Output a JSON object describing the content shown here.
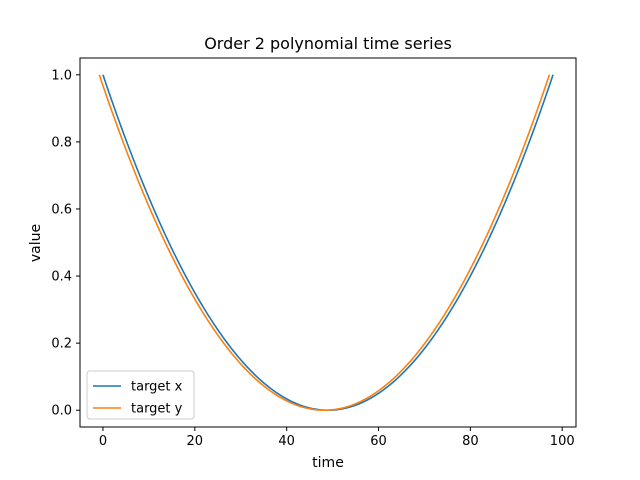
{
  "chart_data": {
    "type": "line",
    "title": "Order 2 polynomial time series",
    "xlabel": "time",
    "ylabel": "value",
    "xlim": [
      -5,
      103
    ],
    "ylim": [
      -0.05,
      1.05
    ],
    "xticks": [
      0,
      20,
      40,
      60,
      80,
      100
    ],
    "yticks": [
      0.0,
      0.2,
      0.4,
      0.6,
      0.8,
      1.0
    ],
    "xtick_labels": [
      "0",
      "20",
      "40",
      "60",
      "80",
      "100"
    ],
    "ytick_labels": [
      "0.0",
      "0.2",
      "0.4",
      "0.6",
      "0.8",
      "1.0"
    ],
    "grid": false,
    "legend": "lower-left",
    "series": [
      {
        "name": "target x",
        "color": "#1f77b4",
        "formula": "((t - 49) / 49)^2, t = 0..98",
        "x": [
          0,
          7,
          14,
          21,
          28,
          35,
          42,
          49,
          56,
          63,
          70,
          77,
          84,
          91,
          98
        ],
        "y": [
          1.0,
          0.735,
          0.51,
          0.327,
          0.184,
          0.082,
          0.02,
          0.0,
          0.02,
          0.082,
          0.184,
          0.327,
          0.51,
          0.735,
          1.0
        ]
      },
      {
        "name": "target y",
        "color": "#ff7f0e",
        "formula": "((t - 49) / 49)^2, t = 0..98",
        "x": [
          0,
          7,
          14,
          21,
          28,
          35,
          42,
          49,
          56,
          63,
          70,
          77,
          84,
          91,
          98
        ],
        "y": [
          1.0,
          0.735,
          0.51,
          0.327,
          0.184,
          0.082,
          0.02,
          0.0,
          0.02,
          0.082,
          0.184,
          0.327,
          0.51,
          0.735,
          1.0
        ]
      }
    ]
  }
}
